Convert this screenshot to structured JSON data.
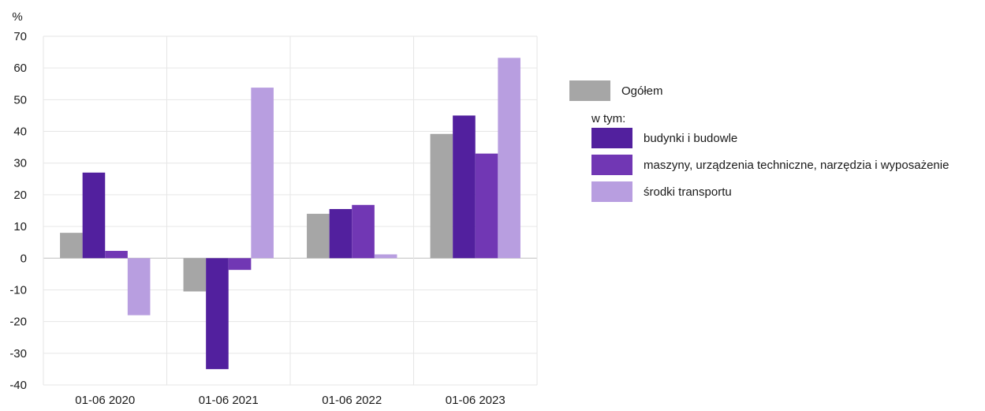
{
  "chart_data": {
    "type": "bar",
    "ylabel": "%",
    "ylim": [
      -40,
      70
    ],
    "yticks": [
      70,
      60,
      50,
      40,
      30,
      20,
      10,
      0,
      -10,
      -20,
      -30,
      -40
    ],
    "categories": [
      "01-06 2020",
      "01-06 2021",
      "01-06 2022",
      "01-06 2023"
    ],
    "series": [
      {
        "name": "Ogółem",
        "color": "#a6a6a6",
        "values": [
          8,
          -10.5,
          14,
          39.2
        ]
      },
      {
        "name": "budynki i budowle",
        "color": "#52209e",
        "values": [
          27,
          -35,
          15.5,
          45
        ]
      },
      {
        "name": "maszyny, urządzenia techniczne, narzędzia i wyposażenie",
        "color": "#7137b4",
        "values": [
          2.3,
          -3.7,
          16.8,
          33
        ]
      },
      {
        "name": "środki transportu",
        "color": "#b89ee0",
        "values": [
          -18,
          53.8,
          1.2,
          63.2
        ]
      }
    ],
    "grid": true,
    "legend_position": "right"
  },
  "legend": {
    "total_label": "Ogółem",
    "subheading": "w tym:"
  }
}
